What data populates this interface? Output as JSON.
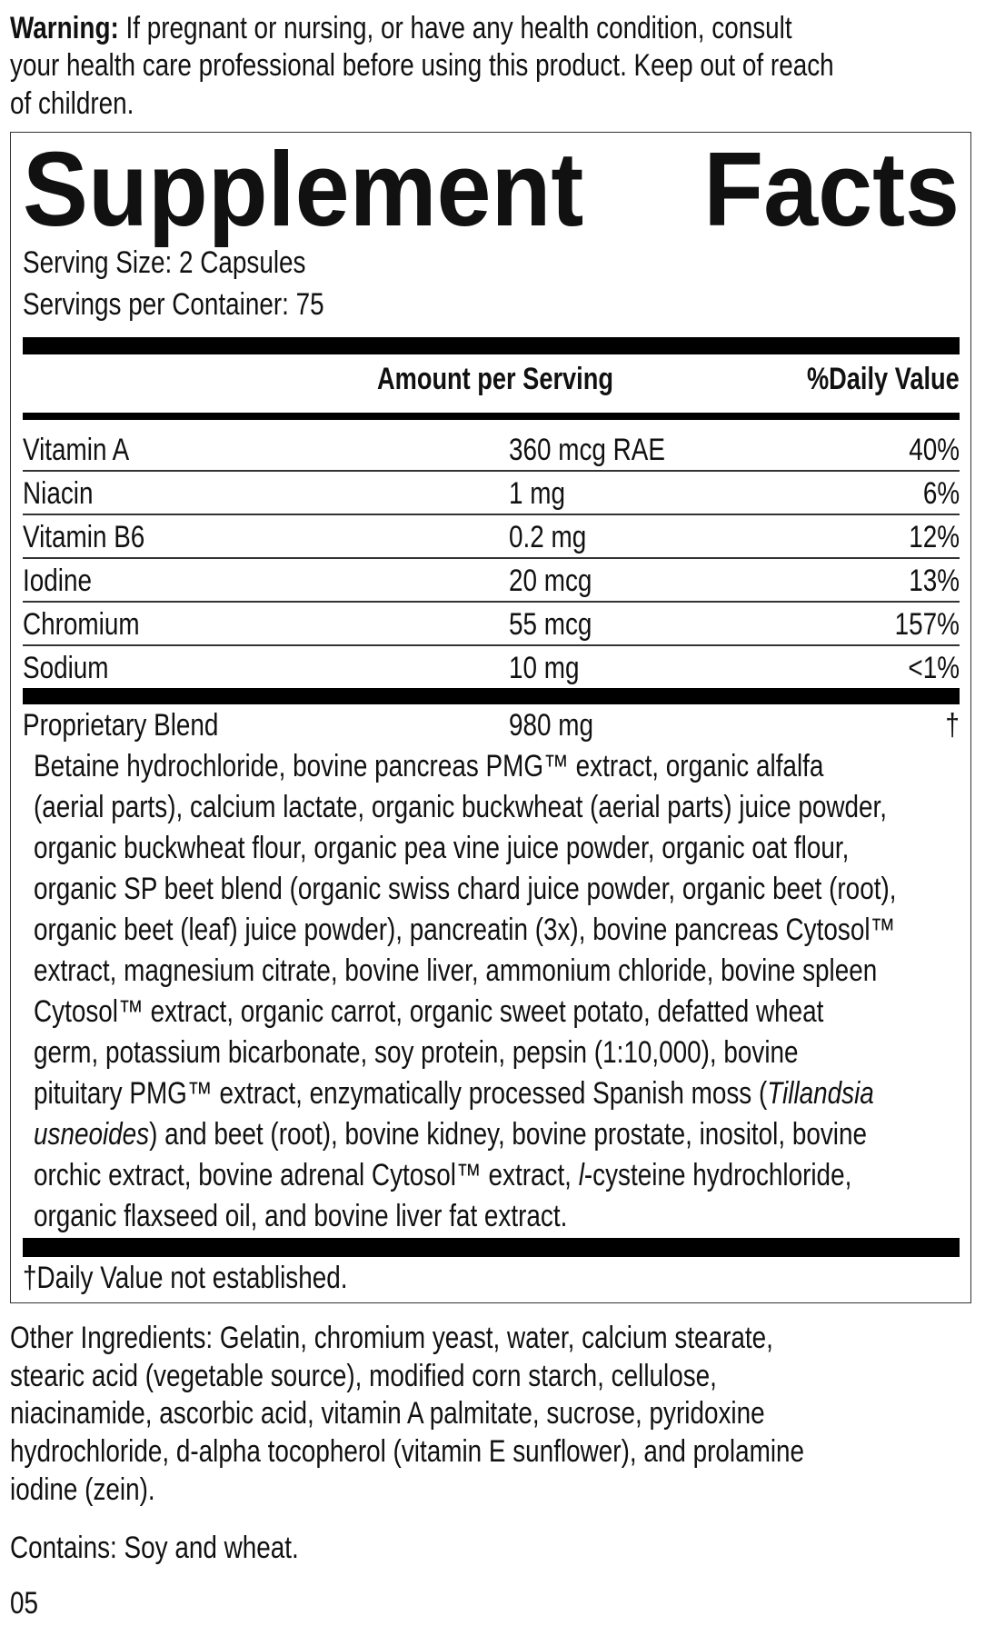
{
  "warning": {
    "label": "Warning:",
    "lines": [
      "If pregnant or nursing, or have any health condition, consult",
      "your health care professional before using this product. Keep out of reach",
      "of children."
    ]
  },
  "title": {
    "word1": "Supplement",
    "word2": "Facts"
  },
  "serving_size": "Serving Size: 2 Capsules",
  "servings_per_container": "Servings per Container: 75",
  "headers": {
    "amount": "Amount per Serving",
    "dv": "%Daily Value"
  },
  "nutrients": [
    {
      "name": "Vitamin A",
      "amount": "360 mcg RAE",
      "dv": "40%"
    },
    {
      "name": "Niacin",
      "amount": "1 mg",
      "dv": "6%"
    },
    {
      "name": "Vitamin B6",
      "amount": "0.2 mg",
      "dv": "12%"
    },
    {
      "name": "Iodine",
      "amount": "20 mcg",
      "dv": "13%"
    },
    {
      "name": "Chromium",
      "amount": "55 mcg",
      "dv": "157%"
    },
    {
      "name": "Sodium",
      "amount": "10 mg",
      "dv": "<1%"
    }
  ],
  "blend": {
    "name": "Proprietary Blend",
    "amount": "980 mg",
    "dv": "†",
    "lines": [
      [
        {
          "t": "Betaine hydrochloride, bovine pancreas PMG™ extract, organic alfalfa"
        }
      ],
      [
        {
          "t": "(aerial parts), calcium lactate, organic buckwheat (aerial parts) juice powder,"
        }
      ],
      [
        {
          "t": "organic buckwheat flour, organic pea vine juice powder, organic oat flour,"
        }
      ],
      [
        {
          "t": "organic SP beet blend (organic swiss chard juice powder, organic beet (root),"
        }
      ],
      [
        {
          "t": "organic beet (leaf) juice powder), pancreatin (3x), bovine pancreas Cytosol™"
        }
      ],
      [
        {
          "t": "extract, magnesium citrate, bovine liver, ammonium chloride, bovine spleen"
        }
      ],
      [
        {
          "t": "Cytosol™ extract, organic carrot, organic sweet potato, defatted wheat"
        }
      ],
      [
        {
          "t": "germ, potassium bicarbonate, soy protein, pepsin (1:10,000), bovine"
        }
      ],
      [
        {
          "t": "pituitary PMG™ extract, enzymatically processed Spanish moss ("
        },
        {
          "t": "Tillandsia",
          "i": true
        }
      ],
      [
        {
          "t": "usneoides",
          "i": true
        },
        {
          "t": ") and beet (root), bovine kidney, bovine prostate, inositol, bovine"
        }
      ],
      [
        {
          "t": "orchic extract, bovine adrenal Cytosol™ extract, "
        },
        {
          "t": "l",
          "i": true
        },
        {
          "t": "-cysteine hydrochloride,"
        }
      ],
      [
        {
          "t": "organic flaxseed oil, and bovine liver fat extract."
        }
      ]
    ]
  },
  "footnote": "†Daily Value not established.",
  "other_ingredients": [
    "Other Ingredients: Gelatin, chromium yeast, water, calcium stearate,",
    "stearic acid (vegetable source), modified corn starch, cellulose,",
    "niacinamide, ascorbic acid, vitamin A palmitate, sucrose, pyridoxine",
    "hydrochloride, d-alpha tocopherol (vitamin E sunflower), and prolamine",
    "iodine (zein)."
  ],
  "contains": "Contains: Soy and wheat.",
  "code": "05"
}
